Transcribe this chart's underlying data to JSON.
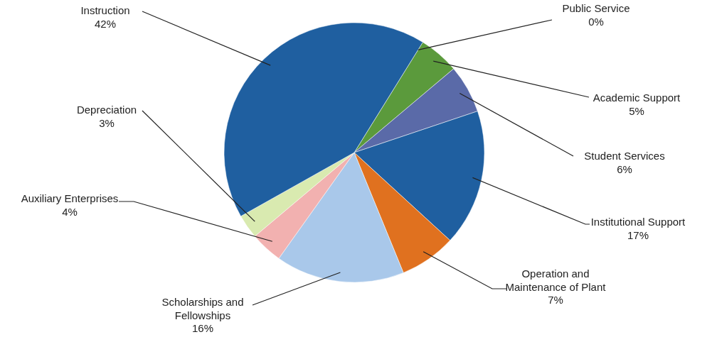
{
  "chart_data": {
    "type": "pie",
    "categories": [
      "Public Service",
      "Academic Support",
      "Student Services",
      "Institutional Support",
      "Operation and Maintenance of Plant",
      "Scholarships and Fellowships",
      "Auxiliary Enterprises",
      "Depreciation",
      "Instruction"
    ],
    "values": [
      0,
      5,
      6,
      17,
      7,
      16,
      4,
      3,
      42
    ],
    "value_labels": [
      "0%",
      "5%",
      "6%",
      "17%",
      "7%",
      "16%",
      "4%",
      "3%",
      "42%"
    ],
    "colors": [
      "#8a5fa8",
      "#5b9a3c",
      "#5a6aa8",
      "#1f5fa0",
      "#e0711f",
      "#a9c8ea",
      "#f2b1b0",
      "#d9eab0",
      "#1f5fa0"
    ]
  }
}
